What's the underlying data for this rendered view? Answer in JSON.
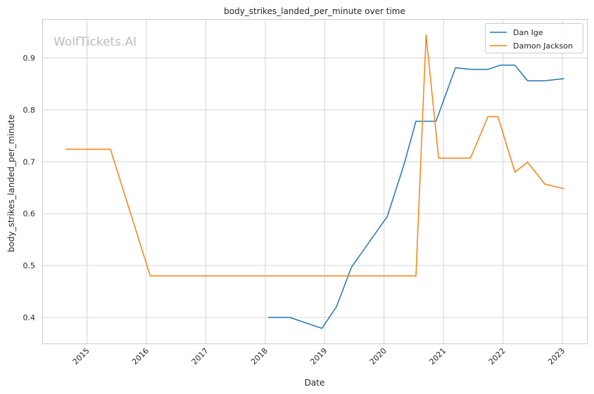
{
  "chart_data": {
    "type": "line",
    "title": "body_strikes_landed_per_minute over time",
    "xlabel": "Date",
    "ylabel": "body_strikes_landed_per_minute",
    "watermark": "WolfTickets.AI",
    "x_ticks": [
      "2015",
      "2016",
      "2017",
      "2018",
      "2019",
      "2020",
      "2021",
      "2022",
      "2023"
    ],
    "y_ticks": [
      "0.4",
      "0.5",
      "0.6",
      "0.7",
      "0.8",
      "0.9"
    ],
    "xlim": [
      "2014-04-01",
      "2023-06-01"
    ],
    "ylim": [
      0.35,
      0.975
    ],
    "grid": true,
    "legend_position": "top-right",
    "series": [
      {
        "name": "Dan Ige",
        "color": "#1f77b4",
        "points": [
          {
            "x": "2018-01-20",
            "y": 0.4
          },
          {
            "x": "2018-06-01",
            "y": 0.4
          },
          {
            "x": "2018-12-15",
            "y": 0.379
          },
          {
            "x": "2019-03-15",
            "y": 0.421
          },
          {
            "x": "2019-06-15",
            "y": 0.497
          },
          {
            "x": "2020-01-20",
            "y": 0.594
          },
          {
            "x": "2020-05-01",
            "y": 0.693
          },
          {
            "x": "2020-07-15",
            "y": 0.778
          },
          {
            "x": "2020-11-15",
            "y": 0.778
          },
          {
            "x": "2021-03-15",
            "y": 0.881
          },
          {
            "x": "2021-06-15",
            "y": 0.878
          },
          {
            "x": "2021-10-01",
            "y": 0.878
          },
          {
            "x": "2021-12-15",
            "y": 0.886
          },
          {
            "x": "2022-03-15",
            "y": 0.886
          },
          {
            "x": "2022-06-01",
            "y": 0.856
          },
          {
            "x": "2022-09-15",
            "y": 0.856
          },
          {
            "x": "2023-01-10",
            "y": 0.86
          }
        ]
      },
      {
        "name": "Damon Jackson",
        "color": "#ff7f0e",
        "points": [
          {
            "x": "2014-08-25",
            "y": 0.724
          },
          {
            "x": "2015-05-25",
            "y": 0.724
          },
          {
            "x": "2016-01-25",
            "y": 0.48
          },
          {
            "x": "2020-07-15",
            "y": 0.48
          },
          {
            "x": "2020-09-15",
            "y": 0.944
          },
          {
            "x": "2020-12-01",
            "y": 0.707
          },
          {
            "x": "2021-06-15",
            "y": 0.707
          },
          {
            "x": "2021-10-01",
            "y": 0.787
          },
          {
            "x": "2021-12-01",
            "y": 0.787
          },
          {
            "x": "2022-03-15",
            "y": 0.68
          },
          {
            "x": "2022-06-01",
            "y": 0.699
          },
          {
            "x": "2022-09-15",
            "y": 0.657
          },
          {
            "x": "2023-01-10",
            "y": 0.648
          }
        ]
      }
    ]
  }
}
